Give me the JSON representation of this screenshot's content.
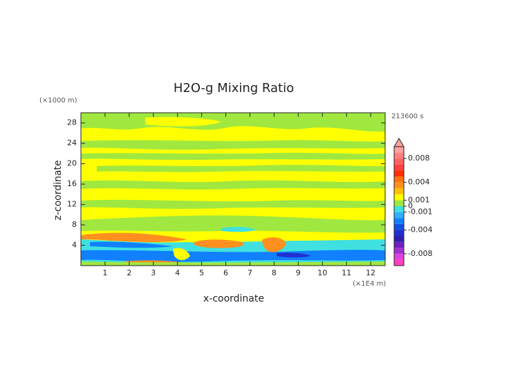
{
  "chart_data": {
    "type": "contour",
    "title": "H2O-g Mixing Ratio",
    "y_unit": "(×1000 m)",
    "x_unit": "(×1E4 m)",
    "time_label": "213600 s",
    "xlabel": "x-coordinate",
    "ylabel": "z-coordinate",
    "xlim": [
      0,
      12.6
    ],
    "xticks": [
      1,
      2,
      3,
      4,
      5,
      6,
      7,
      8,
      9,
      10,
      11,
      12
    ],
    "ylim": [
      0,
      30
    ],
    "yticks": [
      4,
      8,
      12,
      16,
      20,
      24,
      28
    ],
    "colorbar": {
      "lim": [
        -0.01,
        0.01
      ],
      "step": 0.001,
      "colors": [
        "#ff3fc0",
        "#e040e0",
        "#a030d0",
        "#7020c0",
        "#3020b0",
        "#2030d0",
        "#1050e0",
        "#1080ff",
        "#30b0ff",
        "#40e0e0",
        "#a0e840",
        "#ffff00",
        "#ffc000",
        "#ff9020",
        "#ff7010",
        "#ff3000",
        "#ff4040",
        "#ff6060",
        "#ff8080",
        "#ffa0a0"
      ],
      "ticks": [
        0.008,
        0.004,
        0.001,
        0,
        -0.001,
        -0.004,
        -0.008
      ]
    }
  }
}
